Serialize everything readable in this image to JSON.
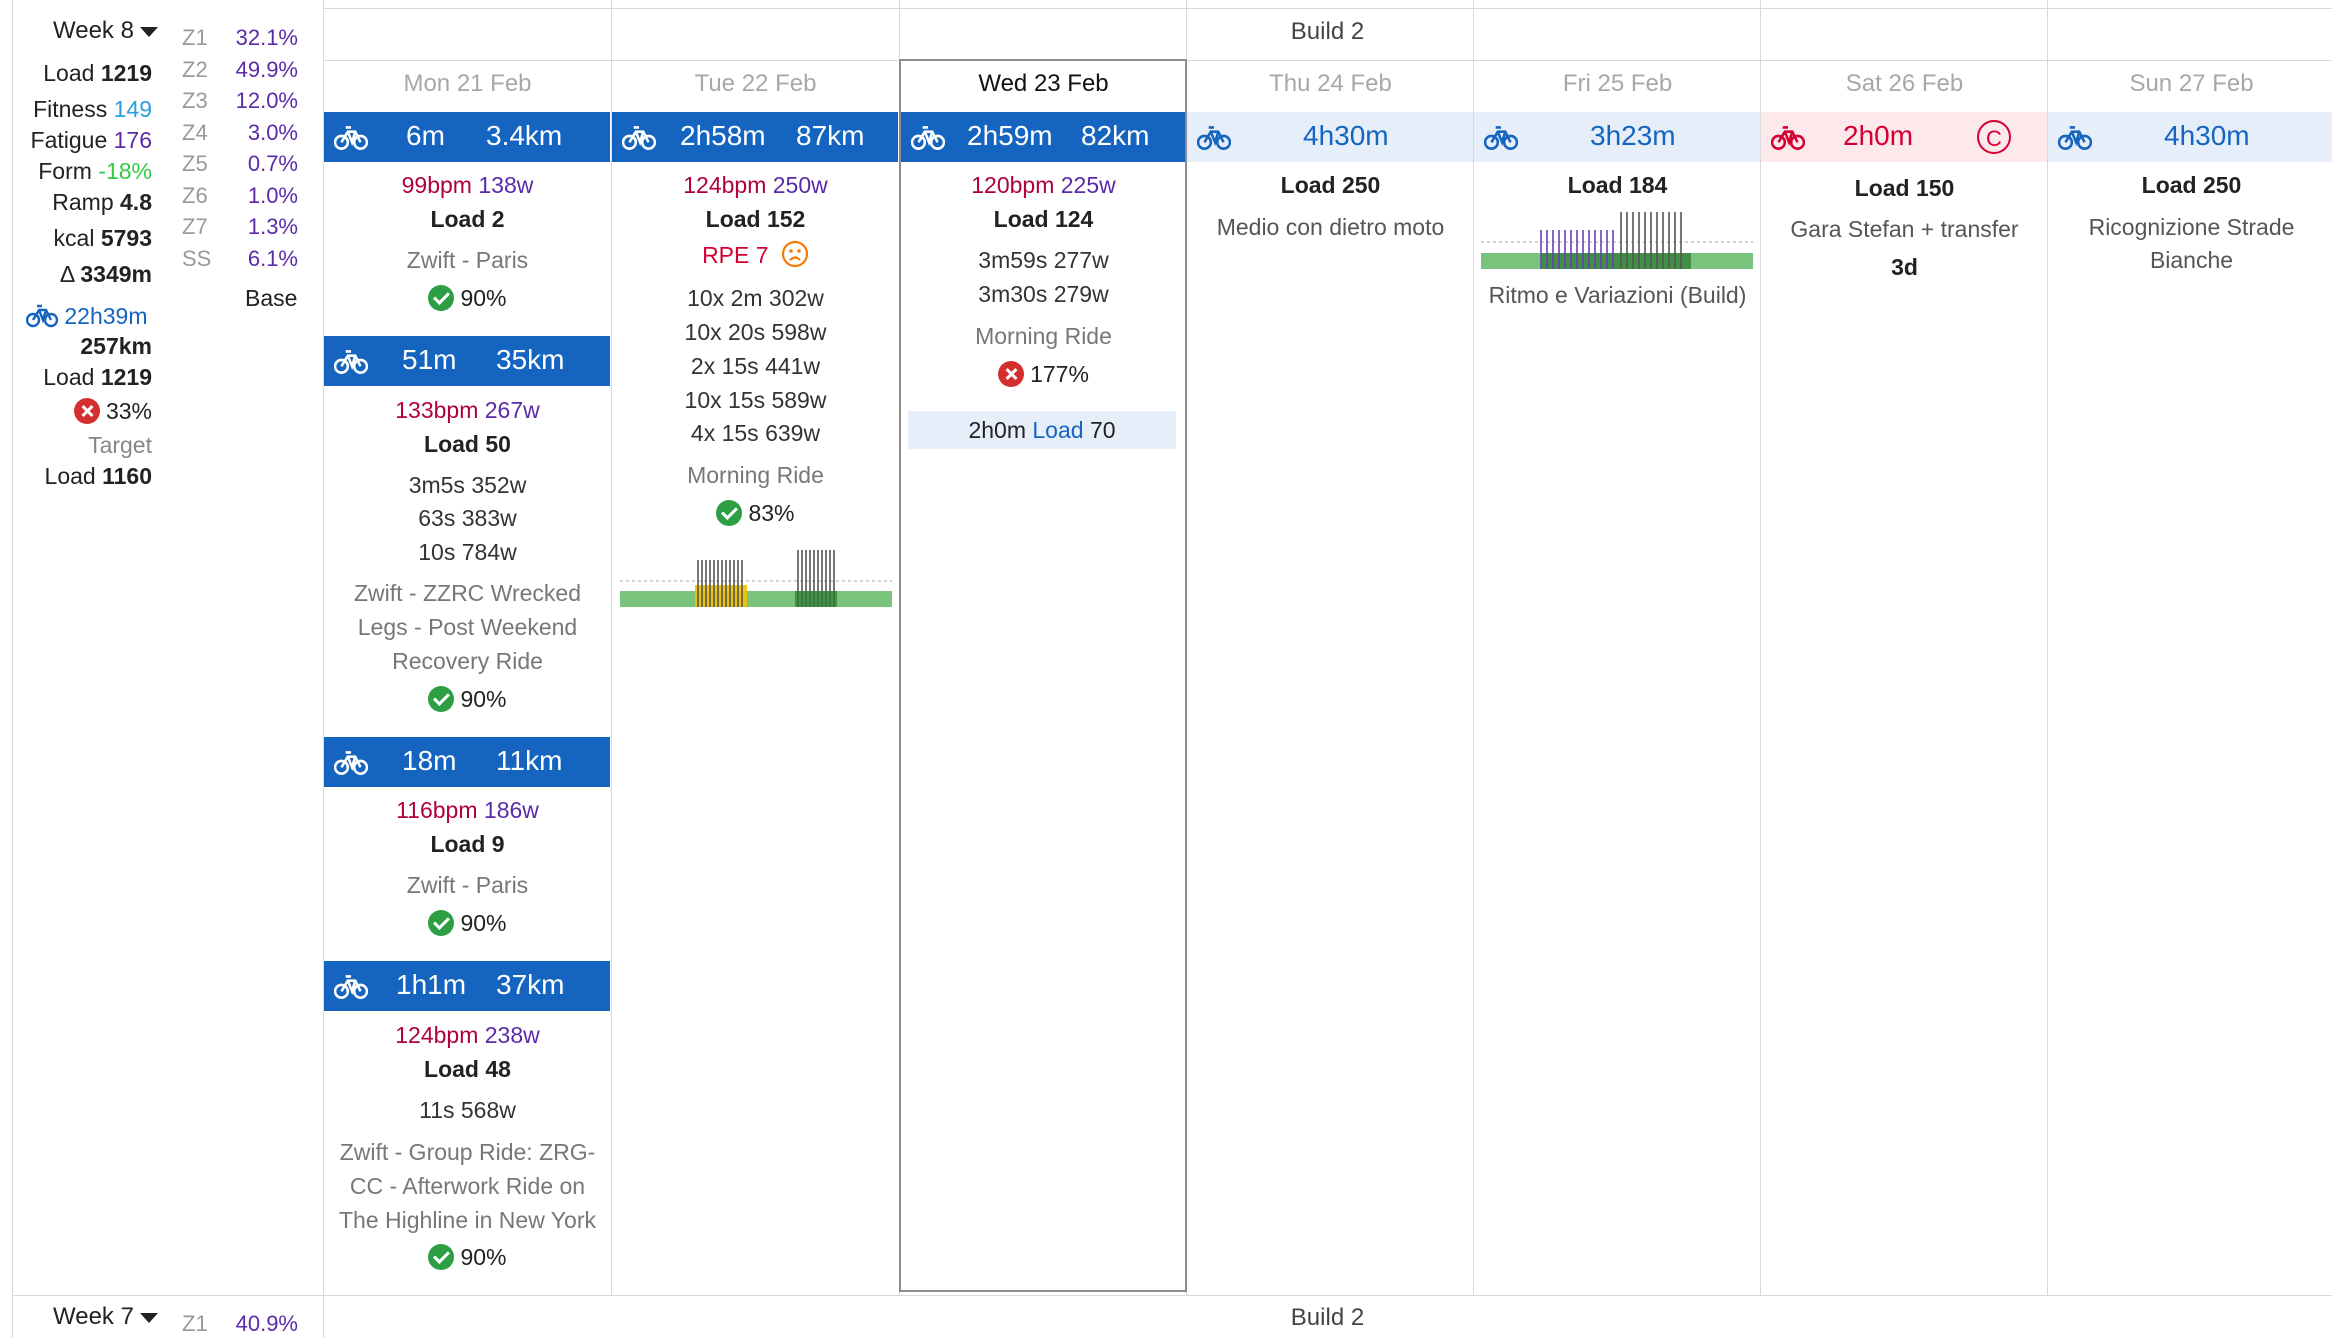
{
  "week_current": {
    "label": "Week 8",
    "load_label": "Load",
    "load_value": "1219",
    "fitness_label": "Fitness",
    "fitness_value": "149",
    "fatigue_label": "Fatigue",
    "fatigue_value": "176",
    "form_label": "Form",
    "form_value": "-18%",
    "ramp_label": "Ramp",
    "ramp_value": "4.8",
    "kcal_label": "kcal",
    "kcal_value": "5793",
    "elev_label": "Δ",
    "elev_value": "3349m",
    "ride_time": "22h39m",
    "ride_distance": "257km",
    "ride_load_label": "Load",
    "ride_load_value": "1219",
    "compliance": "33%",
    "target_label": "Target",
    "target_load_label": "Load",
    "target_load_value": "1160",
    "zones": [
      {
        "zone": "Z1",
        "pct": "32.1%"
      },
      {
        "zone": "Z2",
        "pct": "49.9%"
      },
      {
        "zone": "Z3",
        "pct": "12.0%"
      },
      {
        "zone": "Z4",
        "pct": "3.0%"
      },
      {
        "zone": "Z5",
        "pct": "0.7%"
      },
      {
        "zone": "Z6",
        "pct": "1.0%"
      },
      {
        "zone": "Z7",
        "pct": "1.3%"
      },
      {
        "zone": "SS",
        "pct": "6.1%"
      }
    ],
    "phase_label": "Base",
    "build_label": "Build 2"
  },
  "week_next": {
    "label": "Week 7",
    "zone": "Z1",
    "pct": "40.9%",
    "build_label": "Build 2"
  },
  "days": [
    {
      "name": "Mon",
      "date": "21 Feb"
    },
    {
      "name": "Tue",
      "date": "22 Feb"
    },
    {
      "name": "Wed",
      "date": "23 Feb"
    },
    {
      "name": "Thu",
      "date": "24 Feb"
    },
    {
      "name": "Fri",
      "date": "25 Feb"
    },
    {
      "name": "Sat",
      "date": "26 Feb"
    },
    {
      "name": "Sun",
      "date": "27 Feb"
    }
  ],
  "mon": [
    {
      "time": "6m",
      "dist": "3.4km",
      "bpm": "99bpm",
      "watt": "138w",
      "load": "Load 2",
      "intervals": [],
      "name": [
        "Zwift - Paris"
      ],
      "compliance": "90%"
    },
    {
      "time": "51m",
      "dist": "35km",
      "bpm": "133bpm",
      "watt": "267w",
      "load": "Load 50",
      "intervals": [
        "3m5s 352w",
        "63s 383w",
        "10s 784w"
      ],
      "name": [
        "Zwift - ZZRC Wrecked",
        "Legs - Post Weekend",
        "Recovery Ride"
      ],
      "compliance": "90%"
    },
    {
      "time": "18m",
      "dist": "11km",
      "bpm": "116bpm",
      "watt": "186w",
      "load": "Load 9",
      "intervals": [],
      "name": [
        "Zwift - Paris"
      ],
      "compliance": "90%"
    },
    {
      "time": "1h1m",
      "dist": "37km",
      "bpm": "124bpm",
      "watt": "238w",
      "load": "Load 48",
      "intervals": [
        "11s 568w"
      ],
      "name": [
        "Zwift - Group Ride: ZRG-",
        "CC - Afterwork Ride on",
        "The Highline in New York"
      ],
      "compliance": "90%"
    }
  ],
  "tue": {
    "time": "2h58m",
    "dist": "87km",
    "bpm": "124bpm",
    "watt": "250w",
    "load": "Load 152",
    "rpe": "RPE 7",
    "intervals": [
      "10x  2m 302w",
      "10x 20s 598w",
      "2x 15s 441w",
      "10x 15s 589w",
      "4x 15s 639w"
    ],
    "name": "Morning Ride",
    "compliance": "83%"
  },
  "wed": {
    "time": "2h59m",
    "dist": "82km",
    "bpm": "120bpm",
    "watt": "225w",
    "load": "Load 124",
    "intervals": [
      "3m59s 277w",
      "3m30s 279w"
    ],
    "name": "Morning Ride",
    "compliance": "177%",
    "note_time": "2h0m",
    "note_load_label": "Load",
    "note_load_value": "70"
  },
  "thu": {
    "time": "4h30m",
    "load": "Load 250",
    "name": "Medio con dietro moto"
  },
  "fri": {
    "time": "3h23m",
    "load": "Load 184",
    "name": "Ritmo e Variazioni (Build)"
  },
  "sat": {
    "time": "2h0m",
    "badge": "C",
    "load": "Load 150",
    "name": "Gara Stefan + transfer",
    "extra": "3d"
  },
  "sun": {
    "time": "4h30m",
    "load": "Load 250",
    "name": [
      "Ricognizione Strade",
      "Bianche"
    ]
  },
  "colors": {
    "primary": "#1565c0",
    "race": "#d50032",
    "hr": "#b0003a",
    "power": "#5b2aa8",
    "ok": "#2e9e44",
    "fail": "#d32f2f",
    "fitness": "#2b9de0",
    "form": "#2ecc40"
  },
  "icons": {
    "ride": "bicycle-icon",
    "dropdown": "caret-down-icon",
    "check": "check-circle-icon",
    "fail": "x-circle-icon",
    "rpe": "sad-face-icon"
  }
}
